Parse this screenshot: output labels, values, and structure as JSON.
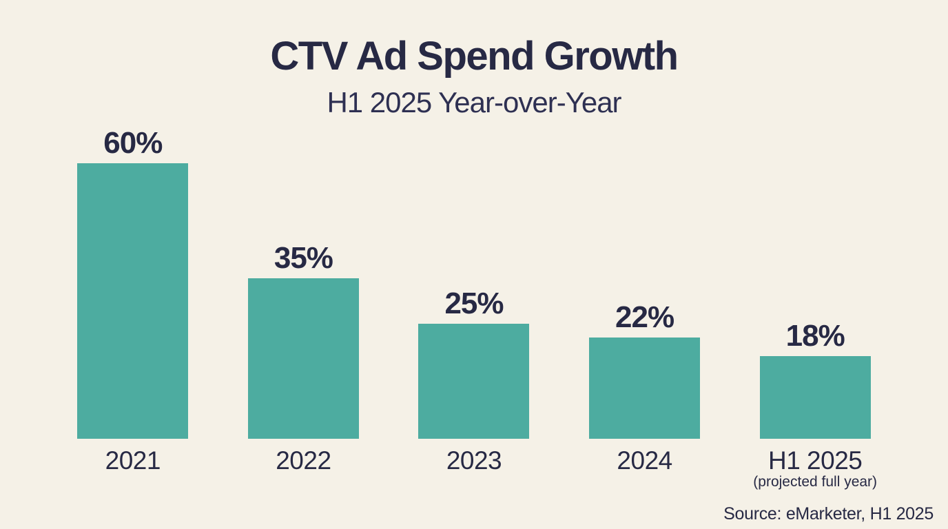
{
  "title": "CTV Ad Spend Growth",
  "subtitle": "H1 2025 Year-over-Year",
  "source": "Source: eMarketer, H1 2025",
  "colors": {
    "background": "#F5F1E7",
    "bar": "#4DACA0",
    "text": "#272944",
    "subtitle_text": "#2E3052"
  },
  "chart_data": {
    "type": "bar",
    "title": "CTV Ad Spend Growth",
    "subtitle": "H1 2025 Year-over-Year",
    "categories": [
      "2021",
      "2022",
      "2023",
      "2024",
      "H1 2025"
    ],
    "category_sublabels": [
      "",
      "",
      "",
      "",
      "(projected full year)"
    ],
    "values": [
      60,
      35,
      25,
      22,
      18
    ],
    "value_labels": [
      "60%",
      "35%",
      "25%",
      "22%",
      "18%"
    ],
    "unit": "%",
    "ylim": [
      0,
      60
    ],
    "grid": false,
    "legend": false,
    "axis_lines": false,
    "bar_color": "#4DACA0",
    "source": "Source: eMarketer, H1 2025"
  }
}
